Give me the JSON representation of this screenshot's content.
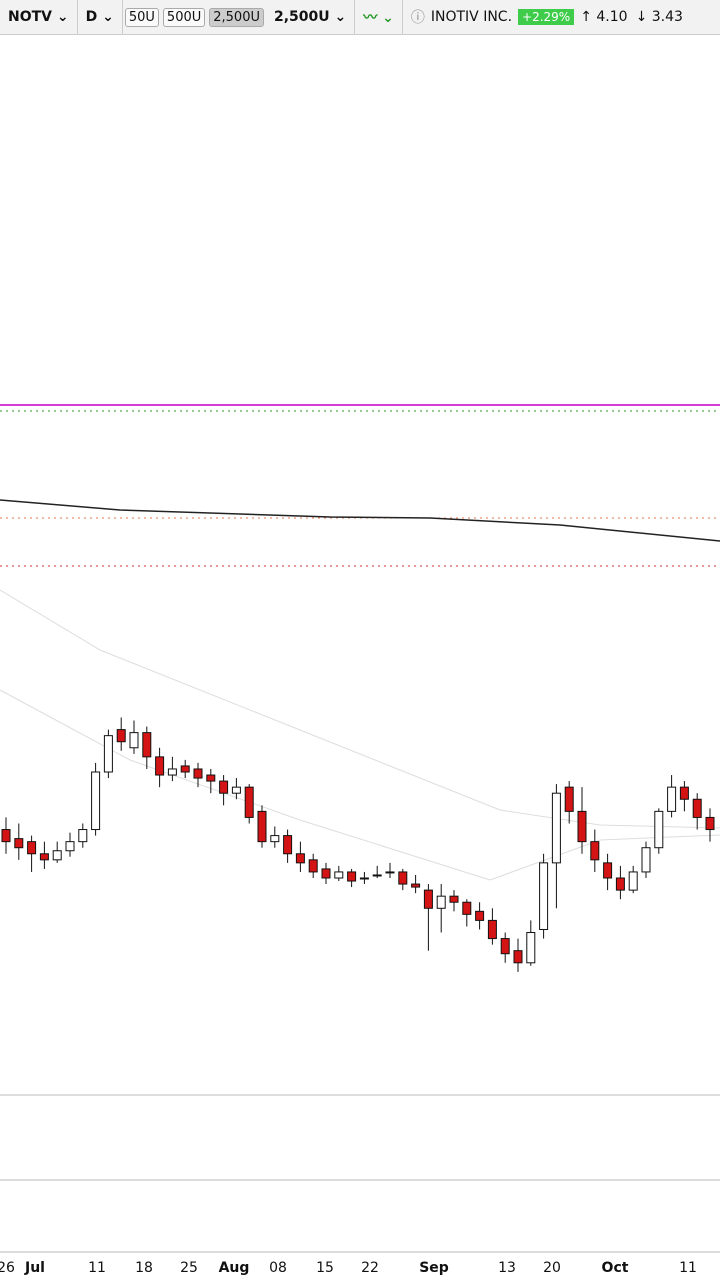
{
  "toolbar": {
    "symbol": "NOTV",
    "interval": "D",
    "sizes": [
      "50U",
      "500U",
      "2,500U"
    ],
    "size": "2,500U",
    "name": "INOTIV INC.",
    "change": "+2.29%",
    "high": "4.10",
    "low": "3.43"
  },
  "chart_data": {
    "type": "candlestick",
    "ylim": [
      2.8,
      6.3
    ],
    "xlabels": [
      "26",
      "Jul",
      "11",
      "18",
      "25",
      "Aug",
      "08",
      "15",
      "22",
      "Sep",
      "13",
      "20",
      "Oct",
      "11"
    ],
    "candles": [
      [
        3.66,
        3.7,
        3.58,
        3.62
      ],
      [
        3.63,
        3.68,
        3.56,
        3.6
      ],
      [
        3.62,
        3.64,
        3.52,
        3.58
      ],
      [
        3.58,
        3.62,
        3.53,
        3.56
      ],
      [
        3.56,
        3.62,
        3.55,
        3.59
      ],
      [
        3.59,
        3.65,
        3.57,
        3.62
      ],
      [
        3.62,
        3.68,
        3.6,
        3.66
      ],
      [
        3.66,
        3.88,
        3.64,
        3.85
      ],
      [
        3.85,
        3.99,
        3.83,
        3.97
      ],
      [
        3.99,
        4.03,
        3.92,
        3.95
      ],
      [
        3.93,
        4.02,
        3.91,
        3.98
      ],
      [
        3.98,
        4.0,
        3.86,
        3.9
      ],
      [
        3.9,
        3.93,
        3.8,
        3.84
      ],
      [
        3.84,
        3.9,
        3.82,
        3.86
      ],
      [
        3.87,
        3.89,
        3.83,
        3.85
      ],
      [
        3.86,
        3.88,
        3.8,
        3.83
      ],
      [
        3.84,
        3.86,
        3.78,
        3.82
      ],
      [
        3.82,
        3.84,
        3.74,
        3.78
      ],
      [
        3.78,
        3.83,
        3.76,
        3.8
      ],
      [
        3.8,
        3.81,
        3.68,
        3.7
      ],
      [
        3.72,
        3.74,
        3.6,
        3.62
      ],
      [
        3.62,
        3.67,
        3.6,
        3.64
      ],
      [
        3.64,
        3.66,
        3.55,
        3.58
      ],
      [
        3.58,
        3.62,
        3.52,
        3.55
      ],
      [
        3.56,
        3.58,
        3.5,
        3.52
      ],
      [
        3.53,
        3.55,
        3.48,
        3.5
      ],
      [
        3.5,
        3.54,
        3.49,
        3.52
      ],
      [
        3.52,
        3.53,
        3.47,
        3.49
      ],
      [
        3.5,
        3.52,
        3.48,
        3.5
      ],
      [
        3.51,
        3.54,
        3.5,
        3.51
      ],
      [
        3.52,
        3.55,
        3.5,
        3.52
      ],
      [
        3.52,
        3.53,
        3.46,
        3.48
      ],
      [
        3.48,
        3.51,
        3.45,
        3.47
      ],
      [
        3.46,
        3.48,
        3.26,
        3.4
      ],
      [
        3.4,
        3.48,
        3.32,
        3.44
      ],
      [
        3.44,
        3.46,
        3.39,
        3.42
      ],
      [
        3.42,
        3.43,
        3.34,
        3.38
      ],
      [
        3.39,
        3.42,
        3.33,
        3.36
      ],
      [
        3.36,
        3.4,
        3.28,
        3.3
      ],
      [
        3.3,
        3.32,
        3.22,
        3.25
      ],
      [
        3.26,
        3.3,
        3.19,
        3.22
      ],
      [
        3.22,
        3.36,
        3.21,
        3.32
      ],
      [
        3.33,
        3.58,
        3.3,
        3.55
      ],
      [
        3.55,
        3.81,
        3.4,
        3.78
      ],
      [
        3.8,
        3.82,
        3.68,
        3.72
      ],
      [
        3.72,
        3.8,
        3.58,
        3.62
      ],
      [
        3.62,
        3.66,
        3.52,
        3.56
      ],
      [
        3.55,
        3.58,
        3.46,
        3.5
      ],
      [
        3.5,
        3.54,
        3.43,
        3.46
      ],
      [
        3.46,
        3.54,
        3.45,
        3.52
      ],
      [
        3.52,
        3.62,
        3.5,
        3.6
      ],
      [
        3.6,
        3.73,
        3.58,
        3.72
      ],
      [
        3.72,
        3.84,
        3.7,
        3.8
      ],
      [
        3.8,
        3.82,
        3.72,
        3.76
      ],
      [
        3.76,
        3.78,
        3.66,
        3.7
      ],
      [
        3.7,
        3.73,
        3.62,
        3.66
      ]
    ]
  }
}
